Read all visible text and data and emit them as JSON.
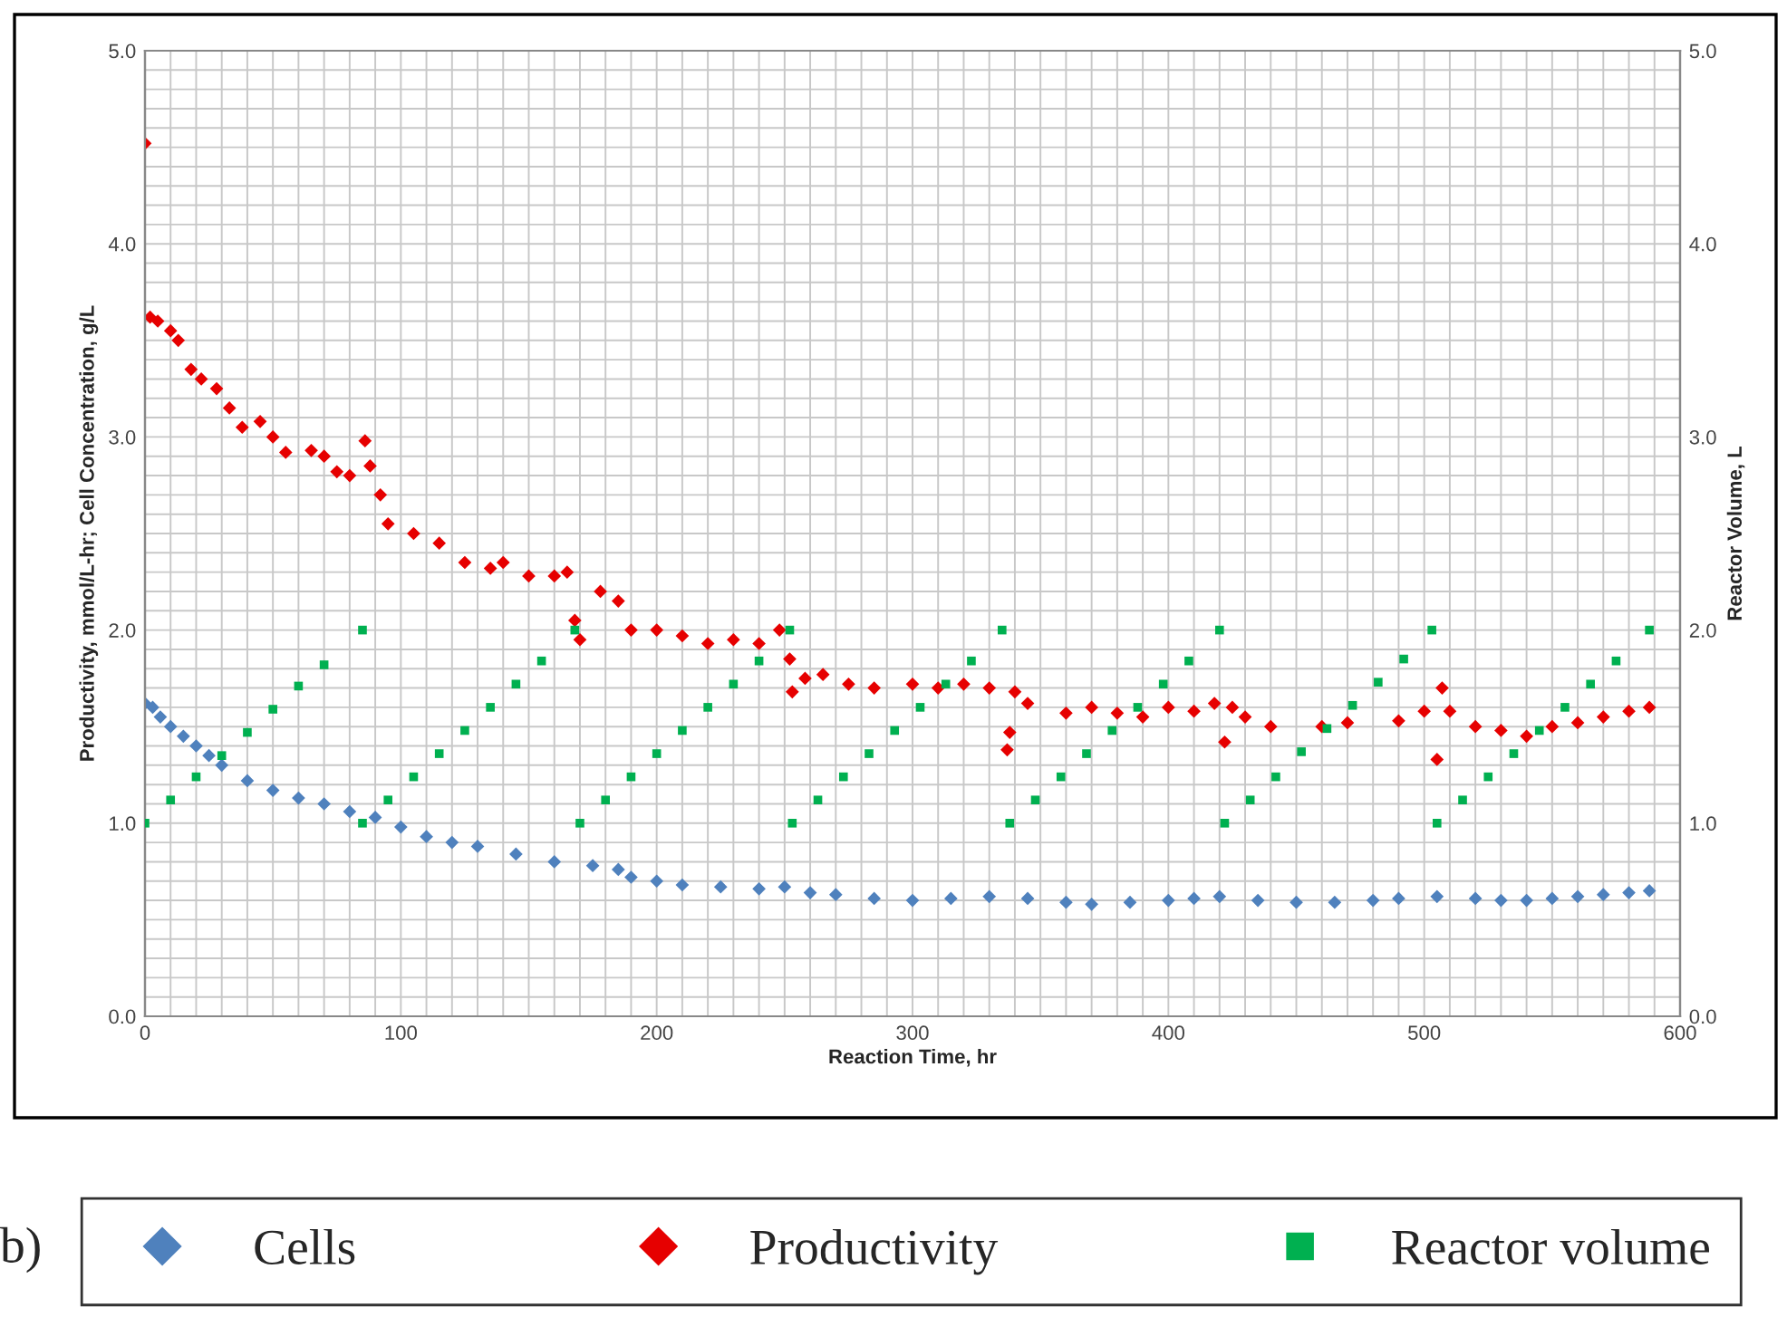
{
  "chart_data": {
    "type": "scatter",
    "xlabel": "Reaction Time, hr",
    "ylabel": "Productivity, mmol/L-hr; Cell Concentration, g/L",
    "y2label": "Reactor Volume, L",
    "xlim": [
      0,
      600
    ],
    "xticks": [
      0,
      100,
      200,
      300,
      400,
      500,
      600
    ],
    "ylim": [
      0,
      5
    ],
    "yticks": [
      {
        "value": 0,
        "label": "0.0"
      },
      {
        "value": 1,
        "label": "1.0"
      },
      {
        "value": 2,
        "label": "2.0"
      },
      {
        "value": 3,
        "label": "3.0"
      },
      {
        "value": 4,
        "label": "4.0"
      },
      {
        "value": 5,
        "label": "5.0"
      }
    ],
    "y2lim": [
      0,
      5
    ],
    "y2ticks": [
      {
        "value": 0,
        "label": "0.0"
      },
      {
        "value": 1,
        "label": "1.0"
      },
      {
        "value": 2,
        "label": "2.0"
      },
      {
        "value": 3,
        "label": "3.0"
      },
      {
        "value": 4,
        "label": "4.0"
      },
      {
        "value": 5,
        "label": "5.0"
      }
    ],
    "grid": true,
    "legend": "bottom",
    "annotations": [
      "b)"
    ],
    "series": [
      {
        "name": "Cells",
        "color": "#4f81bd",
        "marker": "diamond",
        "x": [
          0,
          3,
          6,
          10,
          15,
          20,
          25,
          30,
          40,
          50,
          60,
          70,
          80,
          90,
          100,
          110,
          120,
          130,
          145,
          160,
          175,
          185,
          190,
          200,
          210,
          225,
          240,
          250,
          260,
          270,
          285,
          300,
          315,
          330,
          345,
          360,
          370,
          385,
          400,
          410,
          420,
          435,
          450,
          465,
          480,
          490,
          505,
          520,
          530,
          540,
          550,
          560,
          570,
          580,
          588
        ],
        "values": [
          1.62,
          1.6,
          1.55,
          1.5,
          1.45,
          1.4,
          1.35,
          1.3,
          1.22,
          1.17,
          1.13,
          1.1,
          1.06,
          1.03,
          0.98,
          0.93,
          0.9,
          0.88,
          0.84,
          0.8,
          0.78,
          0.76,
          0.72,
          0.7,
          0.68,
          0.67,
          0.66,
          0.67,
          0.64,
          0.63,
          0.61,
          0.6,
          0.61,
          0.62,
          0.61,
          0.59,
          0.58,
          0.59,
          0.6,
          0.61,
          0.62,
          0.6,
          0.59,
          0.59,
          0.6,
          0.61,
          0.62,
          0.61,
          0.6,
          0.6,
          0.61,
          0.62,
          0.63,
          0.64,
          0.65
        ]
      },
      {
        "name": "Productivity",
        "color": "#e60000",
        "marker": "diamond",
        "x": [
          0,
          2,
          5,
          10,
          13,
          18,
          22,
          28,
          33,
          38,
          45,
          50,
          55,
          65,
          70,
          75,
          80,
          86,
          88,
          92,
          95,
          105,
          115,
          125,
          135,
          140,
          150,
          160,
          165,
          168,
          170,
          178,
          185,
          190,
          200,
          210,
          220,
          230,
          240,
          248,
          252,
          253,
          258,
          265,
          275,
          285,
          300,
          310,
          320,
          330,
          337,
          338,
          340,
          345,
          360,
          370,
          380,
          390,
          400,
          410,
          418,
          422,
          425,
          430,
          440,
          460,
          470,
          490,
          500,
          505,
          507,
          510,
          520,
          530,
          540,
          550,
          560,
          570,
          580,
          588
        ],
        "values": [
          4.52,
          3.62,
          3.6,
          3.55,
          3.5,
          3.35,
          3.3,
          3.25,
          3.15,
          3.05,
          3.08,
          3.0,
          2.92,
          2.93,
          2.9,
          2.82,
          2.8,
          2.98,
          2.85,
          2.7,
          2.55,
          2.5,
          2.45,
          2.35,
          2.32,
          2.35,
          2.28,
          2.28,
          2.3,
          2.05,
          1.95,
          2.2,
          2.15,
          2.0,
          2.0,
          1.97,
          1.93,
          1.95,
          1.93,
          2.0,
          1.85,
          1.68,
          1.75,
          1.77,
          1.72,
          1.7,
          1.72,
          1.7,
          1.72,
          1.7,
          1.38,
          1.47,
          1.68,
          1.62,
          1.57,
          1.6,
          1.57,
          1.55,
          1.6,
          1.58,
          1.62,
          1.42,
          1.6,
          1.55,
          1.5,
          1.5,
          1.52,
          1.53,
          1.58,
          1.33,
          1.7,
          1.58,
          1.5,
          1.48,
          1.45,
          1.5,
          1.52,
          1.55,
          1.58,
          1.6
        ]
      },
      {
        "name": "Reactor volume",
        "color": "#00b050",
        "marker": "square",
        "axis": "y2",
        "x": [
          0,
          10,
          20,
          30,
          40,
          50,
          60,
          70,
          85,
          85,
          95,
          105,
          115,
          125,
          135,
          145,
          155,
          168,
          170,
          180,
          190,
          200,
          210,
          220,
          230,
          240,
          252,
          253,
          263,
          273,
          283,
          293,
          303,
          313,
          323,
          335,
          338,
          348,
          358,
          368,
          378,
          388,
          398,
          408,
          420,
          422,
          432,
          442,
          452,
          462,
          472,
          482,
          492,
          503,
          505,
          515,
          525,
          535,
          545,
          555,
          565,
          575,
          588
        ],
        "values": [
          1.0,
          1.12,
          1.24,
          1.35,
          1.47,
          1.59,
          1.71,
          1.82,
          2.0,
          1.0,
          1.12,
          1.24,
          1.36,
          1.48,
          1.6,
          1.72,
          1.84,
          2.0,
          1.0,
          1.12,
          1.24,
          1.36,
          1.48,
          1.6,
          1.72,
          1.84,
          2.0,
          1.0,
          1.12,
          1.24,
          1.36,
          1.48,
          1.6,
          1.72,
          1.84,
          2.0,
          1.0,
          1.12,
          1.24,
          1.36,
          1.48,
          1.6,
          1.72,
          1.84,
          2.0,
          1.0,
          1.12,
          1.24,
          1.37,
          1.49,
          1.61,
          1.73,
          1.85,
          2.0,
          1.0,
          1.12,
          1.24,
          1.36,
          1.48,
          1.6,
          1.72,
          1.84,
          2.0
        ]
      }
    ]
  }
}
